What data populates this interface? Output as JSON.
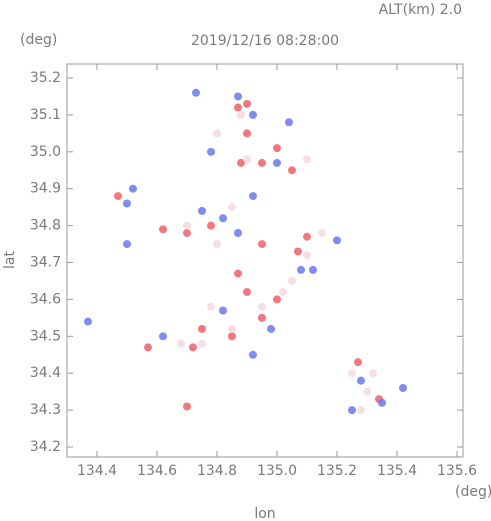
{
  "chart_data": {
    "type": "scatter",
    "title": "2019/12/16 08:28:00",
    "annotation": "ALT(km) 2.0",
    "y_unit": "(deg)",
    "x_unit": "(deg)",
    "xlabel": "lon",
    "ylabel": "lat",
    "xlim": [
      134.3,
      135.62
    ],
    "ylim": [
      34.173,
      35.238
    ],
    "xticks": [
      134.4,
      134.6,
      134.8,
      {
        "value": 135,
        "label": "135.0"
      },
      135.2,
      135.4,
      135.6
    ],
    "yticks": [
      34.2,
      34.3,
      34.4,
      34.5,
      34.6,
      34.7,
      34.8,
      34.9,
      {
        "value": 35,
        "label": "35.0"
      },
      35.1,
      35.2
    ],
    "series": [
      {
        "color": "#f0606a",
        "x": [
          134.47,
          134.7,
          134.57,
          134.72,
          134.85,
          134.78,
          134.7,
          134.62,
          134.9,
          134.95,
          134.95,
          135.07,
          135.1,
          134.88,
          134.95,
          135.05,
          134.87,
          134.9,
          135.0,
          135.27,
          135.34,
          134.87,
          135.0,
          134.75,
          134.9
        ],
        "y": [
          34.88,
          34.31,
          34.47,
          34.47,
          34.5,
          34.8,
          34.78,
          34.79,
          34.62,
          34.55,
          34.75,
          34.73,
          34.77,
          34.97,
          34.97,
          34.95,
          35.12,
          35.13,
          35.01,
          34.43,
          34.33,
          34.67,
          34.6,
          34.52,
          35.05
        ]
      },
      {
        "color": "#6878f0",
        "x": [
          134.52,
          134.5,
          134.37,
          134.5,
          134.73,
          134.87,
          134.92,
          135.04,
          134.78,
          134.82,
          134.75,
          134.87,
          135.08,
          135.2,
          135.28,
          135.35,
          135.42,
          135.25,
          134.92,
          134.98,
          135.12,
          134.82,
          134.62,
          134.92,
          135.0
        ],
        "y": [
          34.9,
          34.86,
          34.54,
          34.75,
          35.16,
          35.15,
          35.1,
          35.08,
          35.0,
          34.82,
          34.84,
          34.78,
          34.68,
          34.76,
          34.38,
          34.32,
          34.36,
          34.3,
          34.45,
          34.52,
          34.68,
          34.57,
          34.5,
          34.88,
          34.97
        ]
      },
      {
        "color": "#f4d8e0",
        "x": [
          134.7,
          134.8,
          134.85,
          135.05,
          135.1,
          134.95,
          134.85,
          134.75,
          135.3,
          135.25,
          135.32,
          134.9,
          135.1,
          134.8,
          134.88,
          135.15,
          135.02,
          134.78,
          134.68,
          135.28
        ],
        "y": [
          34.8,
          34.75,
          34.85,
          34.65,
          34.72,
          34.58,
          34.52,
          34.48,
          34.35,
          34.4,
          34.4,
          34.98,
          34.98,
          35.05,
          35.1,
          34.78,
          34.62,
          34.58,
          34.48,
          34.3
        ]
      }
    ]
  }
}
